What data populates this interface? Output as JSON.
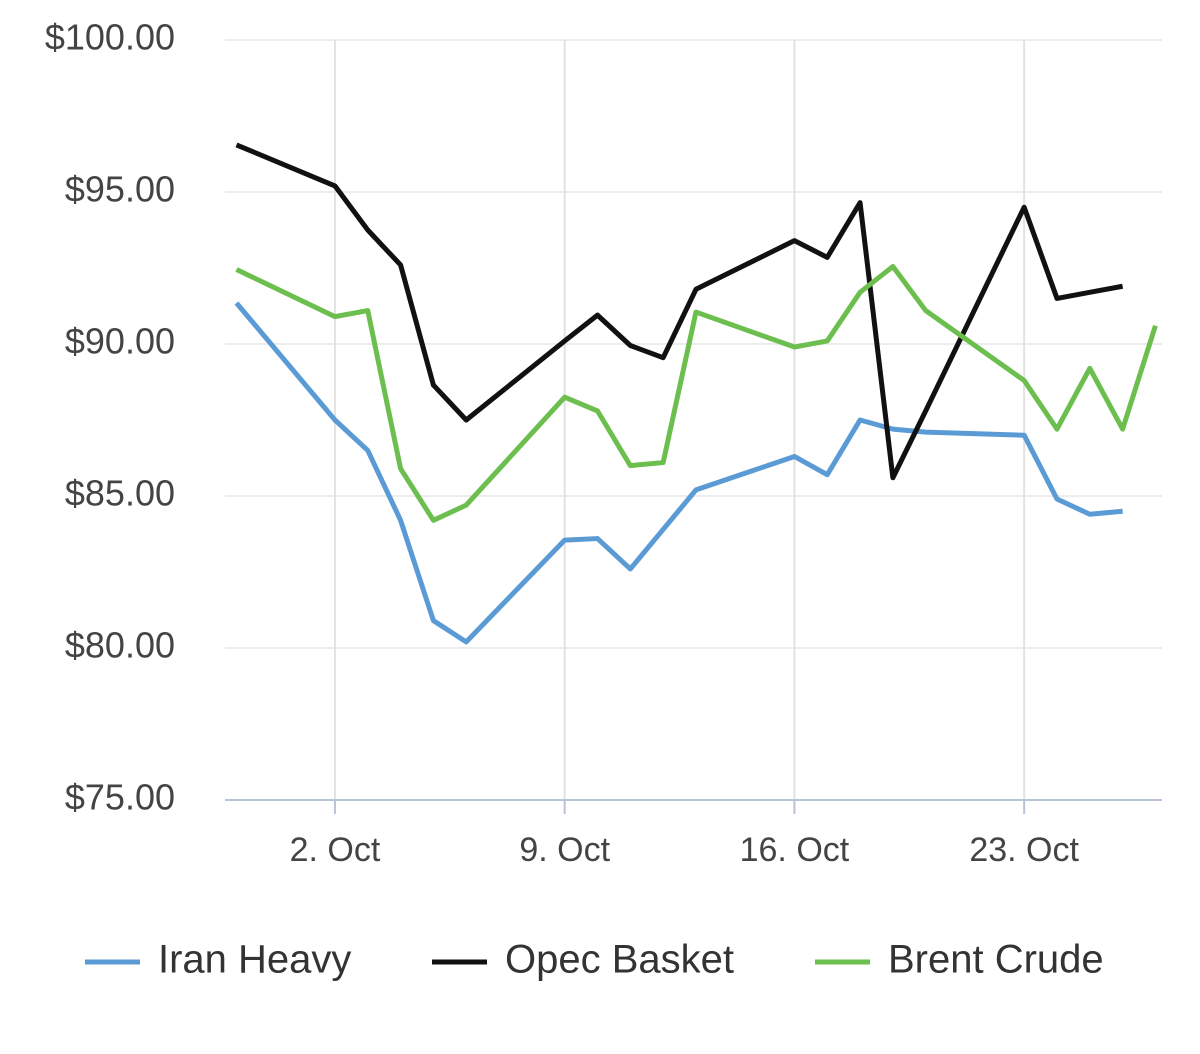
{
  "chart_data": {
    "type": "line",
    "x": [
      -1,
      2,
      3,
      4,
      5,
      6,
      9,
      10,
      11,
      12,
      13,
      16,
      17,
      18,
      19,
      20,
      23,
      24,
      25,
      26,
      27
    ],
    "series": [
      {
        "name": "Iran Heavy",
        "color": "#5b9bd5",
        "values": [
          91.35,
          87.5,
          86.5,
          84.2,
          80.9,
          80.2,
          83.55,
          83.6,
          82.6,
          83.9,
          85.2,
          86.3,
          85.7,
          87.5,
          87.2,
          87.1,
          87.0,
          84.9,
          84.4,
          84.5,
          null
        ]
      },
      {
        "name": "Opec Basket",
        "color": "#111111",
        "values": [
          96.55,
          95.2,
          93.75,
          92.6,
          88.65,
          87.5,
          90.1,
          90.95,
          89.95,
          89.55,
          91.8,
          93.4,
          92.85,
          94.65,
          85.6,
          87.8,
          94.5,
          91.5,
          91.7,
          91.9,
          null
        ]
      },
      {
        "name": "Brent Crude",
        "color": "#6cbf4e",
        "values": [
          92.45,
          90.9,
          91.1,
          85.9,
          84.2,
          84.7,
          88.25,
          87.8,
          86.0,
          86.1,
          91.05,
          89.9,
          90.1,
          91.7,
          92.55,
          91.1,
          88.8,
          87.2,
          89.2,
          87.2,
          90.6
        ]
      }
    ],
    "xlim": [
      -1.35,
      27.2
    ],
    "xticks": [
      {
        "value": 2,
        "label": "2. Oct"
      },
      {
        "value": 9,
        "label": "9. Oct"
      },
      {
        "value": 16,
        "label": "16. Oct"
      },
      {
        "value": 23,
        "label": "23. Oct"
      }
    ],
    "ylim": [
      75,
      100
    ],
    "yticks": [
      {
        "value": 75,
        "label": "$75.00"
      },
      {
        "value": 80,
        "label": "$80.00"
      },
      {
        "value": 85,
        "label": "$85.00"
      },
      {
        "value": 90,
        "label": "$90.00"
      },
      {
        "value": 95,
        "label": "$95.00"
      },
      {
        "value": 100,
        "label": "$100.00"
      }
    ],
    "grid": true,
    "legend": "bottom"
  }
}
